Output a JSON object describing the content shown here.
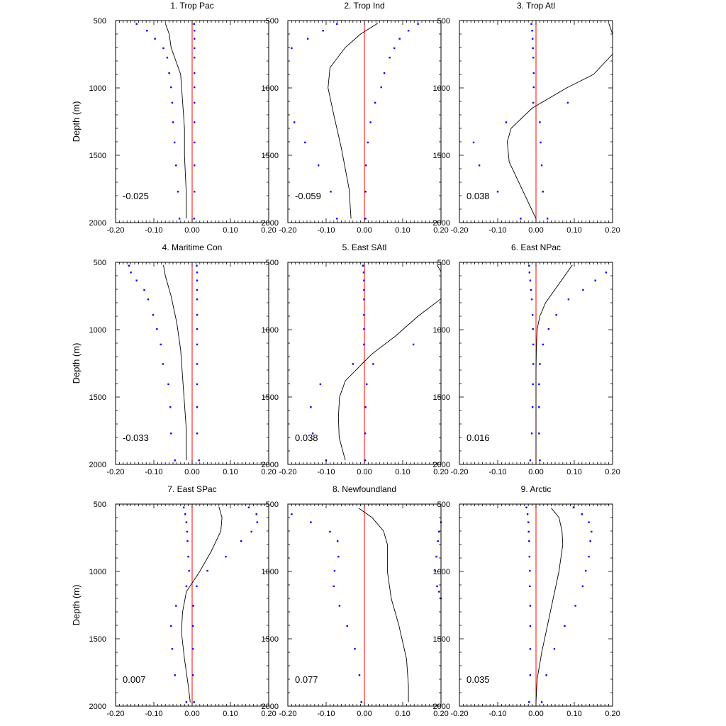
{
  "figure": {
    "ylabel": "Depth (m)",
    "colors": {
      "profile_line": "#000000",
      "dots": "#0000ff",
      "zero_line": "#ff0000",
      "frame": "#000000"
    }
  },
  "chart_data": [
    {
      "type": "line",
      "title": "1. Trop Pac",
      "ylabel": "Depth (m)",
      "xlim": [
        -0.2,
        0.2
      ],
      "ylim": [
        500,
        2000
      ],
      "y_inverted": true,
      "xticks": [
        "-0.20",
        "-0.10",
        "0.00",
        "0.10",
        "0.20"
      ],
      "yticks": [
        "500",
        "1000",
        "1500",
        "2000"
      ],
      "annotation": "-0.025",
      "series": [
        {
          "kind": "line",
          "x": [
            -0.07,
            -0.06,
            -0.055,
            -0.03,
            -0.025,
            -0.02,
            -0.02,
            -0.015,
            -0.015
          ],
          "y": [
            520,
            600,
            700,
            900,
            1100,
            1300,
            1500,
            1800,
            1970
          ]
        },
        {
          "kind": "dots",
          "x": [
            -0.145,
            -0.118,
            -0.097,
            -0.075,
            -0.065,
            -0.06,
            -0.055,
            -0.052,
            -0.05,
            -0.046,
            -0.042,
            -0.037,
            -0.033
          ],
          "y": [
            525,
            575,
            635,
            705,
            775,
            890,
            995,
            1110,
            1255,
            1405,
            1575,
            1770,
            1970
          ]
        },
        {
          "kind": "dots",
          "x": [
            0.005,
            0.006,
            0.006,
            0.006,
            0.006,
            0.006,
            0.006,
            0.006,
            0.006,
            0.006,
            0.006,
            0.006,
            0.005
          ],
          "y": [
            525,
            575,
            635,
            705,
            775,
            890,
            995,
            1110,
            1255,
            1405,
            1575,
            1770,
            1970
          ]
        }
      ]
    },
    {
      "type": "line",
      "title": "2. Trop Ind",
      "ylabel": "",
      "xlim": [
        -0.2,
        0.2
      ],
      "ylim": [
        500,
        2000
      ],
      "y_inverted": true,
      "xticks": [
        "-0.20",
        "-0.10",
        "0.00",
        "0.10",
        "0.20"
      ],
      "yticks": [
        "500",
        "1000",
        "1500",
        "2000"
      ],
      "annotation": "-0.059",
      "series": [
        {
          "kind": "line",
          "x": [
            0.035,
            -0.01,
            -0.05,
            -0.09,
            -0.095,
            -0.08,
            -0.06,
            -0.04,
            -0.035
          ],
          "y": [
            520,
            600,
            700,
            850,
            1000,
            1200,
            1450,
            1750,
            1970
          ]
        },
        {
          "kind": "dots",
          "x": [
            -0.072,
            -0.108,
            -0.148,
            -0.19,
            -0.183,
            -0.155,
            -0.12,
            -0.088,
            -0.072
          ],
          "y": [
            525,
            575,
            635,
            705,
            1255,
            1405,
            1575,
            1770,
            1970
          ]
        },
        {
          "kind": "dots",
          "x": [
            0.14,
            0.115,
            0.092,
            0.078,
            0.066,
            0.052,
            0.044,
            0.028,
            0.016,
            0.009,
            0.004,
            0.003,
            0.003
          ],
          "y": [
            525,
            575,
            635,
            705,
            775,
            890,
            995,
            1110,
            1255,
            1405,
            1575,
            1770,
            1970
          ]
        }
      ]
    },
    {
      "type": "line",
      "title": "3. Trop Atl",
      "ylabel": "",
      "xlim": [
        -0.2,
        0.2
      ],
      "ylim": [
        500,
        2000
      ],
      "y_inverted": true,
      "xticks": [
        "-0.20",
        "-0.10",
        "0.00",
        "0.10",
        "0.20"
      ],
      "yticks": [
        "500",
        "1000",
        "1500",
        "2000"
      ],
      "annotation": "0.038",
      "series": [
        {
          "kind": "line",
          "x": [
            0.19,
            0.2,
            0.2,
            0.15,
            0.08,
            -0.01,
            -0.065,
            -0.075,
            -0.07,
            -0.02,
            0.0
          ],
          "y": [
            520,
            600,
            750,
            900,
            1000,
            1150,
            1300,
            1400,
            1550,
            1850,
            1970
          ]
        },
        {
          "kind": "dots",
          "x": [
            -0.012,
            -0.01,
            -0.009,
            -0.008,
            -0.007,
            -0.006,
            -0.006,
            -0.007,
            -0.078,
            -0.163,
            -0.148,
            -0.1,
            -0.04
          ],
          "y": [
            525,
            575,
            635,
            705,
            775,
            890,
            995,
            1110,
            1255,
            1405,
            1575,
            1770,
            1970
          ]
        },
        {
          "kind": "dots",
          "x": [
            0.083,
            0.01,
            0.012,
            0.015,
            0.018,
            0.03
          ],
          "y": [
            1110,
            1255,
            1405,
            1575,
            1770,
            1970
          ]
        }
      ]
    },
    {
      "type": "line",
      "title": "4. Maritime Con",
      "ylabel": "Depth (m)",
      "xlim": [
        -0.2,
        0.2
      ],
      "ylim": [
        500,
        2000
      ],
      "y_inverted": true,
      "xticks": [
        "-0.20",
        "-0.10",
        "0.00",
        "0.10",
        "0.20"
      ],
      "yticks": [
        "500",
        "1000",
        "1500",
        "2000"
      ],
      "annotation": "-0.033",
      "series": [
        {
          "kind": "line",
          "x": [
            -0.075,
            -0.07,
            -0.055,
            -0.04,
            -0.03,
            -0.025,
            -0.02,
            -0.015,
            -0.015
          ],
          "y": [
            520,
            600,
            750,
            950,
            1150,
            1350,
            1550,
            1750,
            1970
          ]
        },
        {
          "kind": "dots",
          "x": [
            -0.165,
            -0.16,
            -0.145,
            -0.125,
            -0.115,
            -0.102,
            -0.092,
            -0.082,
            -0.076,
            -0.062,
            -0.057,
            -0.055,
            -0.045
          ],
          "y": [
            525,
            575,
            635,
            705,
            775,
            890,
            995,
            1110,
            1255,
            1405,
            1575,
            1770,
            1970
          ]
        },
        {
          "kind": "dots",
          "x": [
            0.012,
            0.013,
            0.013,
            0.013,
            0.013,
            0.013,
            0.013,
            0.013,
            0.013,
            0.013,
            0.013,
            0.013,
            0.018
          ],
          "y": [
            525,
            575,
            635,
            705,
            775,
            890,
            995,
            1110,
            1255,
            1405,
            1575,
            1770,
            1970
          ]
        }
      ]
    },
    {
      "type": "line",
      "title": "5. East SAtl",
      "ylabel": "",
      "xlim": [
        -0.2,
        0.2
      ],
      "ylim": [
        500,
        2000
      ],
      "y_inverted": true,
      "xticks": [
        "-0.20",
        "-0.10",
        "0.00",
        "0.10",
        "0.20"
      ],
      "yticks": [
        "500",
        "1000",
        "1500",
        "2000"
      ],
      "annotation": "0.038",
      "series": [
        {
          "kind": "line",
          "x": [
            0.19,
            0.2
          ],
          "y": [
            520,
            570
          ]
        },
        {
          "kind": "line",
          "x": [
            0.2,
            0.14,
            0.08,
            0.02,
            -0.005,
            -0.05,
            -0.065,
            -0.068,
            -0.066,
            -0.05
          ],
          "y": [
            770,
            900,
            1050,
            1180,
            1250,
            1380,
            1500,
            1650,
            1800,
            1970
          ]
        },
        {
          "kind": "dots",
          "x": [
            -0.004,
            -0.002,
            -0.001,
            -0.001,
            -0.001,
            -0.001,
            -0.001,
            -0.001,
            -0.03,
            -0.115,
            -0.14,
            -0.135,
            -0.1
          ],
          "y": [
            525,
            575,
            635,
            705,
            775,
            890,
            995,
            1110,
            1255,
            1405,
            1575,
            1770,
            1970
          ]
        },
        {
          "kind": "dots",
          "x": [
            0.128,
            0.023,
            0.006,
            0.003,
            0.002,
            0.002
          ],
          "y": [
            1110,
            1255,
            1405,
            1575,
            1770,
            1970
          ]
        }
      ]
    },
    {
      "type": "line",
      "title": "6. East NPac",
      "ylabel": "",
      "xlim": [
        -0.2,
        0.2
      ],
      "ylim": [
        500,
        2000
      ],
      "y_inverted": true,
      "xticks": [
        "-0.20",
        "-0.10",
        "0.00",
        "0.10",
        "0.20"
      ],
      "yticks": [
        "500",
        "1000",
        "1500",
        "2000"
      ],
      "annotation": "0.016",
      "series": [
        {
          "kind": "line",
          "x": [
            0.095,
            0.075,
            0.05,
            0.025,
            0.01,
            0.003,
            0.001,
            0.0,
            0.0,
            0.0
          ],
          "y": [
            520,
            600,
            700,
            800,
            900,
            1000,
            1150,
            1300,
            1600,
            1970
          ]
        },
        {
          "kind": "dots",
          "x": [
            -0.018,
            -0.017,
            -0.015,
            -0.013,
            -0.011,
            -0.009,
            -0.008,
            -0.007,
            -0.007,
            -0.008,
            -0.009,
            -0.011,
            -0.015
          ],
          "y": [
            525,
            575,
            635,
            705,
            775,
            890,
            995,
            1110,
            1255,
            1405,
            1575,
            1770,
            1970
          ]
        },
        {
          "kind": "dots",
          "x": [
            0.183,
            0.155,
            0.123,
            0.085,
            0.053,
            0.033,
            0.018,
            0.01,
            0.008,
            0.008,
            0.008,
            0.01
          ],
          "y": [
            575,
            635,
            705,
            775,
            890,
            995,
            1110,
            1255,
            1405,
            1575,
            1770,
            1970
          ]
        }
      ]
    },
    {
      "type": "line",
      "title": "7. East SPac",
      "ylabel": "Depth (m)",
      "xlim": [
        -0.2,
        0.2
      ],
      "ylim": [
        500,
        2000
      ],
      "y_inverted": true,
      "xticks": [
        "-0.20",
        "-0.10",
        "0.00",
        "0.10",
        "0.20"
      ],
      "yticks": [
        "500",
        "1000",
        "1500",
        "2000"
      ],
      "annotation": "0.007",
      "series": [
        {
          "kind": "line",
          "x": [
            0.07,
            0.078,
            0.075,
            0.05,
            0.02,
            -0.015,
            -0.025,
            -0.028,
            -0.02,
            -0.01,
            -0.005
          ],
          "y": [
            520,
            600,
            700,
            850,
            1000,
            1150,
            1300,
            1450,
            1650,
            1850,
            1970
          ]
        },
        {
          "kind": "dots",
          "x": [
            -0.022,
            -0.018,
            -0.015,
            -0.013,
            -0.012,
            -0.01,
            -0.008,
            -0.015,
            -0.042,
            -0.055,
            -0.052,
            -0.045,
            -0.015
          ],
          "y": [
            525,
            575,
            635,
            705,
            775,
            890,
            995,
            1110,
            1255,
            1405,
            1575,
            1770,
            1970
          ]
        },
        {
          "kind": "dots",
          "x": [
            0.148,
            0.168,
            0.17,
            0.155,
            0.128,
            0.088,
            0.04,
            0.012,
            0.003,
            0.002,
            0.002,
            0.002,
            0.005
          ],
          "y": [
            525,
            575,
            635,
            705,
            775,
            890,
            995,
            1110,
            1255,
            1405,
            1575,
            1770,
            1970
          ]
        }
      ]
    },
    {
      "type": "line",
      "title": "8. Newfoundland",
      "ylabel": "",
      "xlim": [
        -0.2,
        0.2
      ],
      "ylim": [
        500,
        2000
      ],
      "y_inverted": true,
      "xticks": [
        "-0.20",
        "-0.10",
        "0.00",
        "0.10",
        "0.20"
      ],
      "yticks": [
        "500",
        "1000",
        "1500",
        "2000"
      ],
      "annotation": "0.077",
      "series": [
        {
          "kind": "line",
          "x": [
            -0.015,
            0.02,
            0.05,
            0.06,
            0.06,
            0.07,
            0.09,
            0.11,
            0.115,
            0.115
          ],
          "y": [
            530,
            600,
            700,
            800,
            1000,
            1200,
            1400,
            1650,
            1850,
            1970
          ]
        },
        {
          "kind": "dots",
          "x": [
            -0.19,
            -0.14,
            -0.09,
            -0.07,
            -0.068,
            -0.078,
            -0.08,
            -0.065,
            -0.045,
            -0.025,
            -0.013,
            -0.008
          ],
          "y": [
            575,
            635,
            705,
            775,
            890,
            995,
            1110,
            1255,
            1405,
            1575,
            1770,
            1970
          ]
        },
        {
          "kind": "dots",
          "x": [
            0.2,
            0.195,
            0.192,
            0.188,
            0.185,
            0.19,
            0.195,
            0.2
          ],
          "y": [
            635,
            705,
            775,
            890,
            995,
            1110,
            1150,
            1200
          ]
        }
      ]
    },
    {
      "type": "line",
      "title": "9. Arctic",
      "ylabel": "",
      "xlim": [
        -0.2,
        0.2
      ],
      "ylim": [
        500,
        2000
      ],
      "y_inverted": true,
      "xticks": [
        "-0.20",
        "-0.10",
        "0.00",
        "0.10",
        "0.20"
      ],
      "yticks": [
        "500",
        "1000",
        "1500",
        "2000"
      ],
      "annotation": "0.035",
      "series": [
        {
          "kind": "line",
          "x": [
            0.04,
            0.06,
            0.068,
            0.07,
            0.06,
            0.045,
            0.03,
            0.015,
            0.003,
            0.0
          ],
          "y": [
            530,
            600,
            700,
            800,
            1000,
            1200,
            1400,
            1600,
            1800,
            1970
          ]
        },
        {
          "kind": "dots",
          "x": [
            -0.025,
            -0.022,
            -0.02,
            -0.019,
            -0.018,
            -0.017,
            -0.016,
            -0.016,
            -0.015,
            -0.015,
            -0.015,
            -0.015,
            -0.018
          ],
          "y": [
            525,
            575,
            635,
            705,
            775,
            890,
            995,
            1110,
            1255,
            1405,
            1575,
            1770,
            1970
          ]
        },
        {
          "kind": "dots",
          "x": [
            0.098,
            0.12,
            0.138,
            0.145,
            0.142,
            0.138,
            0.13,
            0.122,
            0.103,
            0.075,
            0.048,
            0.027,
            0.015
          ],
          "y": [
            525,
            575,
            635,
            705,
            775,
            890,
            995,
            1110,
            1255,
            1405,
            1575,
            1770,
            1970
          ]
        }
      ]
    }
  ]
}
